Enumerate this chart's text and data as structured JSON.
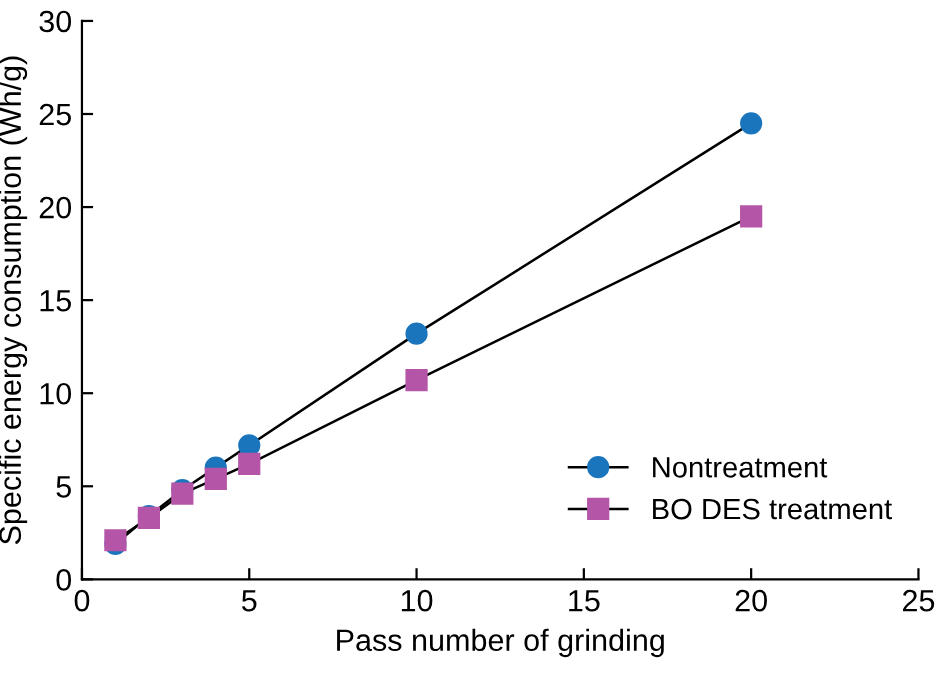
{
  "chart_data": {
    "type": "line",
    "xlabel": "Pass number of grinding",
    "ylabel": "Specific energy consumption (Wh/g)",
    "xlim": [
      0,
      25
    ],
    "xticks": [
      0,
      5,
      10,
      15,
      20,
      25
    ],
    "ylim": [
      0,
      30
    ],
    "yticks": [
      0,
      5,
      10,
      15,
      20,
      25,
      30
    ],
    "grid": false,
    "legend": "bottom right",
    "series": [
      {
        "name": "Nontreatment",
        "color": "#1a75bc",
        "marker": "circle",
        "x": [
          1,
          2,
          3,
          4,
          5,
          10,
          20
        ],
        "values": [
          1.9,
          3.4,
          4.8,
          6.0,
          7.2,
          13.2,
          24.5
        ]
      },
      {
        "name": "BO DES treatment",
        "color": "#b455a8",
        "marker": "square",
        "x": [
          1,
          2,
          3,
          4,
          5,
          10,
          20
        ],
        "values": [
          2.1,
          3.3,
          4.6,
          5.4,
          6.2,
          10.7,
          19.5
        ]
      }
    ]
  }
}
